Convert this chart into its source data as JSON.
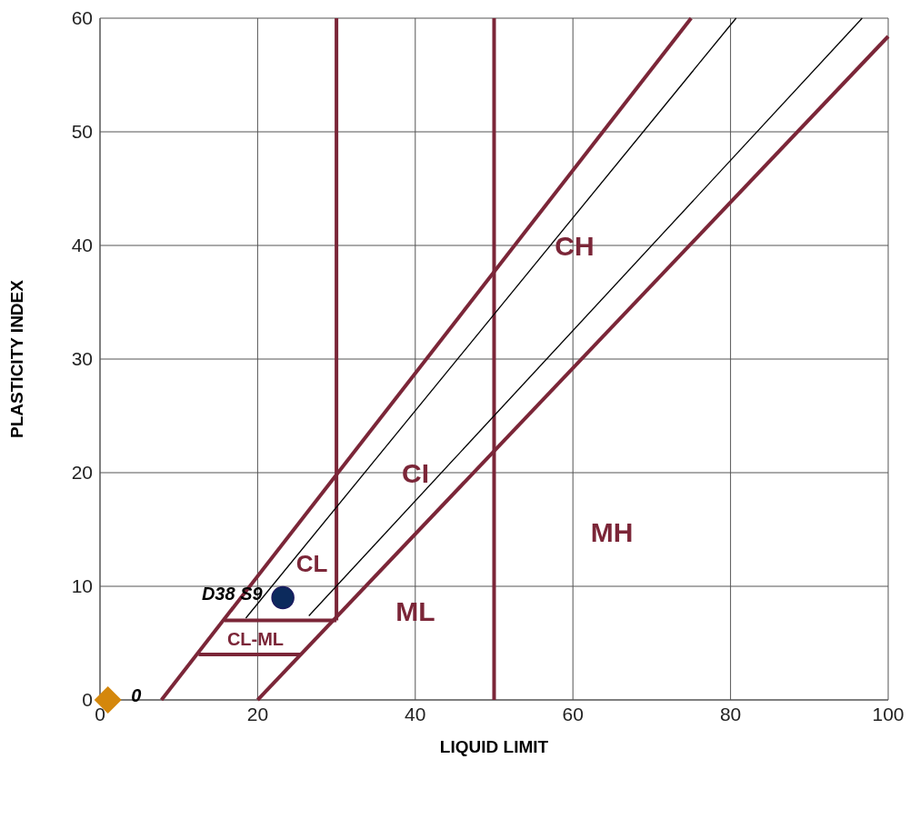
{
  "chart_data": {
    "type": "scatter",
    "xlabel": "LIQUID LIMIT",
    "ylabel": "PLASTICITY INDEX",
    "xlim": [
      0,
      100
    ],
    "ylim": [
      0,
      60
    ],
    "xticks": [
      0,
      20,
      40,
      60,
      80,
      100
    ],
    "yticks": [
      0,
      10,
      20,
      30,
      40,
      50,
      60
    ],
    "grid": true,
    "legend": false,
    "series": [
      {
        "type": "line",
        "color": "#7b2638",
        "x": [
          20,
          100
        ],
        "values": [
          0,
          58.4
        ]
      },
      {
        "type": "line",
        "color": "#7b2638",
        "x": [
          7.8,
          75
        ],
        "values": [
          0,
          60
        ]
      },
      {
        "type": "line",
        "color": "#7b2638",
        "x": [
          30,
          30
        ],
        "values": [
          7,
          60
        ]
      },
      {
        "type": "line",
        "color": "#7b2638",
        "x": [
          50,
          50
        ],
        "values": [
          0,
          60
        ]
      },
      {
        "type": "line",
        "color": "#7b2638",
        "x": [
          15.8,
          30
        ],
        "values": [
          7,
          7
        ]
      },
      {
        "type": "line",
        "color": "#7b2638",
        "x": [
          12.5,
          25.4
        ],
        "values": [
          4,
          4
        ]
      },
      {
        "type": "line",
        "color": "#000000",
        "x": [
          18.5,
          80.7
        ],
        "values": [
          7.2,
          60
        ]
      },
      {
        "type": "line",
        "color": "#000000",
        "x": [
          26.5,
          96.7
        ],
        "values": [
          7.4,
          60
        ]
      },
      {
        "name": "0",
        "color": "#d4870c",
        "marker": "diamond",
        "x": [
          1
        ],
        "values": [
          0
        ]
      },
      {
        "name": "D38 S9",
        "color": "#0c2a5c",
        "marker": "circle",
        "x": [
          23.2
        ],
        "values": [
          9
        ]
      }
    ],
    "annotations": [
      "CH",
      "CI",
      "CL",
      "CL-ML",
      "ML",
      "MH"
    ]
  }
}
